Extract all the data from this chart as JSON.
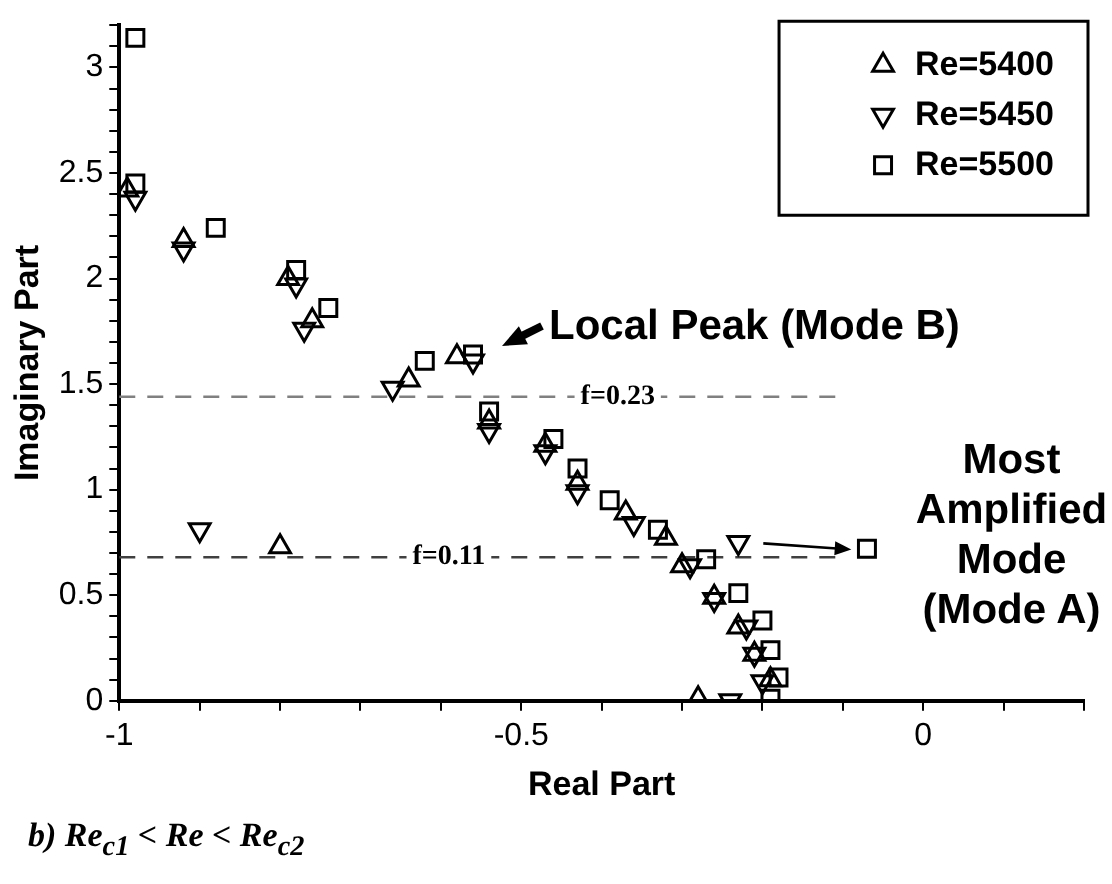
{
  "chart_data": {
    "type": "scatter",
    "xlabel": "Real Part",
    "ylabel": "Imaginary Part",
    "xlim": [
      -1,
      0.2
    ],
    "ylim": [
      0,
      3.2
    ],
    "xticks": [
      -1,
      {
        "value": -0.9,
        "label": null
      },
      {
        "value": -0.8,
        "label": null
      },
      {
        "value": -0.7,
        "label": null
      },
      {
        "value": -0.6,
        "label": null
      },
      -0.5,
      {
        "value": -0.4,
        "label": null
      },
      {
        "value": -0.3,
        "label": null
      },
      {
        "value": -0.2,
        "label": null
      },
      {
        "value": -0.1,
        "label": null
      },
      0,
      {
        "value": 0.1,
        "label": null
      },
      {
        "value": 0.2,
        "label": null
      }
    ],
    "yticks": [
      0,
      {
        "value": 0.1,
        "label": null
      },
      {
        "value": 0.2,
        "label": null
      },
      {
        "value": 0.3,
        "label": null
      },
      {
        "value": 0.4,
        "label": null
      },
      0.5,
      {
        "value": 0.6,
        "label": null
      },
      {
        "value": 0.7,
        "label": null
      },
      {
        "value": 0.8,
        "label": null
      },
      {
        "value": 0.9,
        "label": null
      },
      1,
      {
        "value": 1.1,
        "label": null
      },
      {
        "value": 1.2,
        "label": null
      },
      {
        "value": 1.3,
        "label": null
      },
      {
        "value": 1.4,
        "label": null
      },
      1.5,
      {
        "value": 1.6,
        "label": null
      },
      {
        "value": 1.7,
        "label": null
      },
      {
        "value": 1.8,
        "label": null
      },
      {
        "value": 1.9,
        "label": null
      },
      2,
      {
        "value": 2.1,
        "label": null
      },
      {
        "value": 2.2,
        "label": null
      },
      {
        "value": 2.3,
        "label": null
      },
      {
        "value": 2.4,
        "label": null
      },
      2.5,
      {
        "value": 2.6,
        "label": null
      },
      {
        "value": 2.7,
        "label": null
      },
      {
        "value": 2.8,
        "label": null
      },
      {
        "value": 2.9,
        "label": null
      },
      3,
      {
        "value": 3.1,
        "label": null
      },
      {
        "value": 3.2,
        "label": null
      }
    ],
    "grid": false,
    "legend": "top right",
    "series": [
      {
        "name": "Re=5400",
        "color": "#000000",
        "marker": "triangle",
        "x": [
          -0.99,
          -0.92,
          -0.79,
          -0.76,
          -0.64,
          -0.58,
          -0.54,
          -0.47,
          -0.43,
          -0.37,
          -0.32,
          -0.3,
          -0.26,
          -0.23,
          -0.21,
          -0.19,
          -0.28,
          -0.8
        ],
        "values": [
          2.42,
          2.18,
          2.0,
          1.8,
          1.52,
          1.63,
          1.32,
          1.21,
          1.03,
          0.89,
          0.77,
          0.64,
          0.49,
          0.35,
          0.22,
          0.1,
          0.01,
          0.73
        ]
      },
      {
        "name": "Re=5450",
        "color": "#000000",
        "marker": "triangle_down",
        "x": [
          -0.98,
          -0.92,
          -0.78,
          -0.77,
          -0.66,
          -0.56,
          -0.54,
          -0.47,
          -0.43,
          -0.36,
          -0.29,
          -0.26,
          -0.22,
          -0.21,
          -0.2,
          -0.24,
          -0.23,
          -0.9
        ],
        "values": [
          2.38,
          2.14,
          1.97,
          1.76,
          1.48,
          1.61,
          1.28,
          1.18,
          0.99,
          0.84,
          0.64,
          0.48,
          0.35,
          0.22,
          0.09,
          0.0,
          0.75,
          0.81
        ]
      },
      {
        "name": "Re=5500",
        "color": "#000000",
        "marker": "square",
        "x": [
          -0.98,
          -0.98,
          -0.88,
          -0.78,
          -0.74,
          -0.62,
          -0.56,
          -0.54,
          -0.46,
          -0.43,
          -0.39,
          -0.33,
          -0.27,
          -0.23,
          -0.2,
          -0.19,
          -0.18,
          -0.19,
          -0.07
        ],
        "values": [
          3.14,
          2.45,
          2.24,
          2.04,
          1.86,
          1.61,
          1.64,
          1.37,
          1.24,
          1.1,
          0.95,
          0.81,
          0.67,
          0.51,
          0.38,
          0.24,
          0.11,
          0.01,
          0.72
        ]
      }
    ],
    "ref_lines": [
      {
        "axis": "y",
        "value": 1.44,
        "color": "#808080",
        "line_style": "dashed"
      },
      {
        "axis": "y",
        "value": 0.68,
        "color": "#404040",
        "line_style": "dashed"
      }
    ],
    "annotations": [
      {
        "text": "Local Peak (Mode B)",
        "x": -0.56,
        "y": 1.64
      },
      {
        "text": "Most Amplified Mode (Mode A)",
        "x": -0.07,
        "y": 0.72
      },
      {
        "text": "f=0.23",
        "x": -0.38,
        "y": 1.44
      },
      {
        "text": "f=0.11",
        "x": -0.59,
        "y": 0.68
      },
      "b) Re$_{c1}$ < Re < Re$_{c2}$"
    ]
  }
}
